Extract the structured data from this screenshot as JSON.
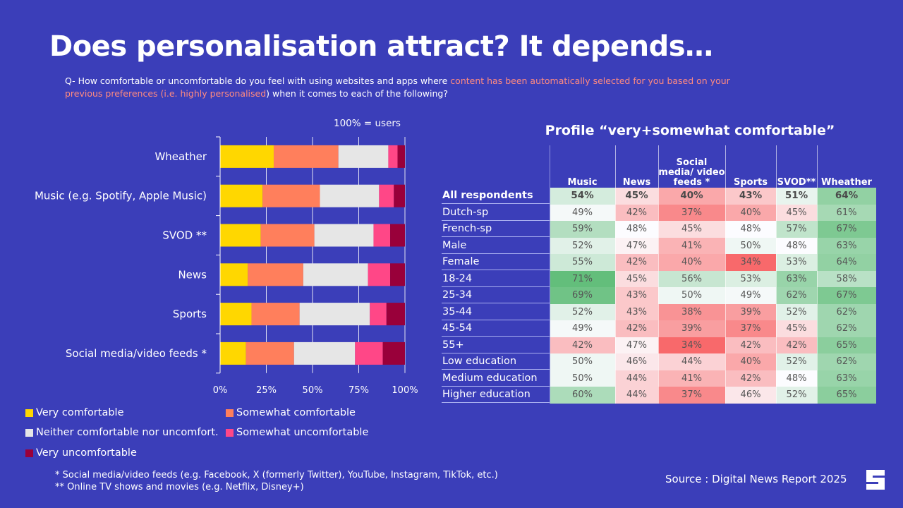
{
  "slide": {
    "title": "Does personalisation attract? It depends…",
    "question_parts": [
      {
        "text": "Q- How comfortable or uncomfortable do you feel with using websites and apps where ",
        "highlight": false
      },
      {
        "text": "content has been automatically selected for you based on your previous preferences (i.e. highly personalised",
        "highlight": true
      },
      {
        "text": ") when it comes to each of the following?",
        "highlight": false
      }
    ],
    "highlight_color": "#ff8a80",
    "base_note": "100%  =  users",
    "footnotes": [
      "* Social media/video feeds (e.g. Facebook, X (formerly Twitter), YouTube, Instagram, TikTok, etc.)",
      "** Online TV shows and movies (e.g. Netflix, Disney+)"
    ],
    "source": "Source : Digital News Report 2025",
    "logo_letter": "S"
  },
  "chart_data": [
    {
      "type": "bar",
      "orientation": "horizontal",
      "stacked": true,
      "title": "",
      "xlabel": "",
      "ylabel": "",
      "xlim": [
        0,
        100
      ],
      "x_ticks": [
        "0%",
        "25%",
        "50%",
        "75%",
        "100%"
      ],
      "grid": true,
      "legend_position": "bottom",
      "categories": [
        "Wheather",
        "Music (e.g. Spotify, Apple Music)",
        "SVOD **",
        "News",
        "Sports",
        "Social media/video feeds  *"
      ],
      "series": [
        {
          "name": "Very comfortable",
          "color": "#ffd700",
          "values": [
            29,
            23,
            22,
            15,
            17,
            14
          ]
        },
        {
          "name": "Somewhat comfortable",
          "color": "#ff7f5c",
          "values": [
            35,
            31,
            29,
            30,
            26,
            26
          ]
        },
        {
          "name": "Neither comfortable nor uncomfort.",
          "color": "#e6e6e6",
          "values": [
            27,
            32,
            32,
            35,
            38,
            33
          ]
        },
        {
          "name": "Somewhat uncomfortable",
          "color": "#ff4787",
          "values": [
            5,
            8,
            9,
            12,
            9,
            15
          ]
        },
        {
          "name": "Very uncomfortable",
          "color": "#99003a",
          "values": [
            4,
            6,
            8,
            8,
            10,
            12
          ]
        }
      ]
    },
    {
      "type": "table",
      "title": "Profile “very+somewhat comfortable”",
      "columns": [
        "Music",
        "News",
        "Social media/ video feeds *",
        "Sports",
        "SVOD**",
        "Wheather"
      ],
      "rows": [
        {
          "label": "All respondents",
          "bold": true,
          "values": [
            54,
            45,
            40,
            43,
            51,
            64
          ]
        },
        {
          "label": "Dutch-sp",
          "values": [
            49,
            42,
            37,
            40,
            45,
            61
          ]
        },
        {
          "label": "French-sp",
          "values": [
            59,
            48,
            45,
            48,
            57,
            67
          ]
        },
        {
          "label": "Male",
          "values": [
            52,
            47,
            41,
            50,
            48,
            63
          ]
        },
        {
          "label": "Female",
          "values": [
            55,
            42,
            40,
            34,
            53,
            64
          ]
        },
        {
          "label": "18-24",
          "values": [
            71,
            45,
            56,
            53,
            63,
            58
          ]
        },
        {
          "label": "25-34",
          "values": [
            69,
            43,
            50,
            49,
            62,
            67
          ]
        },
        {
          "label": "35-44",
          "values": [
            52,
            43,
            38,
            39,
            52,
            62
          ]
        },
        {
          "label": "45-54",
          "values": [
            49,
            42,
            39,
            37,
            45,
            62
          ]
        },
        {
          "label": "55+",
          "values": [
            42,
            47,
            34,
            42,
            42,
            65
          ]
        },
        {
          "label": "Low education",
          "values": [
            50,
            46,
            44,
            40,
            52,
            62
          ]
        },
        {
          "label": "Medium education",
          "values": [
            50,
            44,
            41,
            42,
            48,
            63
          ]
        },
        {
          "label": "Higher education",
          "values": [
            60,
            44,
            37,
            46,
            52,
            65
          ]
        }
      ],
      "value_suffix": "%",
      "color_scale": {
        "low": "#f8696b",
        "mid": "#fcfcff",
        "high": "#63be7b"
      }
    }
  ]
}
